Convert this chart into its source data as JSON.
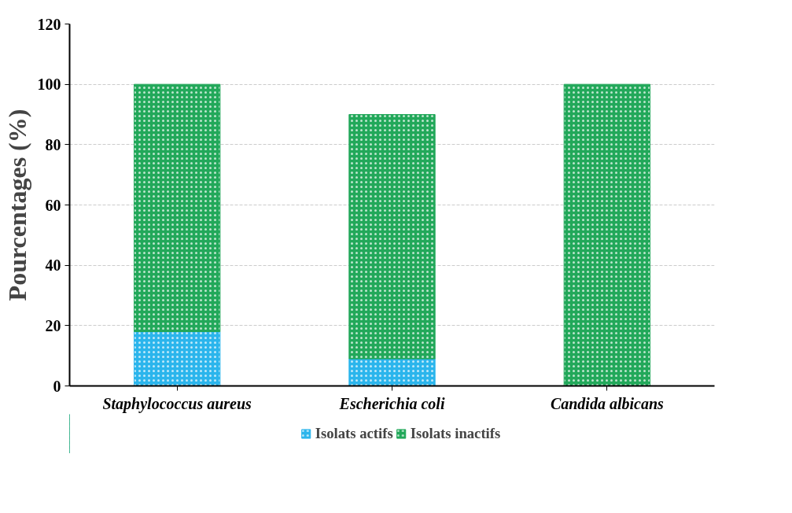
{
  "chart_data": {
    "type": "bar",
    "stacked": true,
    "ylabel": "Pourcentages (%)",
    "categories": [
      "Staphylococcus aureus",
      "Escherichia coli",
      "Candida albicans"
    ],
    "series": [
      {
        "name": "Isolats actifs",
        "color": "#2bb5ec",
        "values": [
          18,
          9,
          0
        ]
      },
      {
        "name": "Isolats inactifs",
        "color": "#22a85a",
        "values": [
          82,
          81,
          100
        ]
      }
    ],
    "ylim": [
      0,
      120
    ],
    "yticks": [
      0,
      20,
      40,
      60,
      80,
      100,
      120
    ],
    "grid": "y",
    "legend": "bottom"
  }
}
